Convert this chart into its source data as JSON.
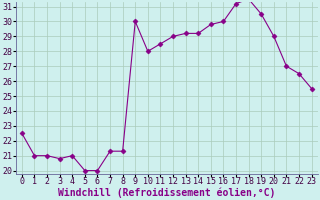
{
  "x": [
    0,
    1,
    2,
    3,
    4,
    5,
    6,
    7,
    8,
    9,
    10,
    11,
    12,
    13,
    14,
    15,
    16,
    17,
    18,
    19,
    20,
    21,
    22,
    23
  ],
  "y": [
    22.5,
    21.0,
    21.0,
    20.8,
    21.0,
    20.0,
    20.0,
    21.3,
    21.3,
    30.0,
    28.0,
    28.5,
    29.0,
    29.2,
    29.2,
    29.8,
    30.0,
    31.2,
    31.5,
    30.5,
    29.0,
    27.0,
    26.5,
    25.5
  ],
  "line_color": "#880088",
  "marker": "D",
  "marker_size": 2.5,
  "bg_color": "#cff0ee",
  "grid_color": "#aaccbb",
  "xlabel": "Windchill (Refroidissement éolien,°C)",
  "ylim": [
    20,
    31
  ],
  "xlim": [
    -0.5,
    23.5
  ],
  "yticks": [
    20,
    21,
    22,
    23,
    24,
    25,
    26,
    27,
    28,
    29,
    30,
    31
  ],
  "xticks": [
    0,
    1,
    2,
    3,
    4,
    5,
    6,
    7,
    8,
    9,
    10,
    11,
    12,
    13,
    14,
    15,
    16,
    17,
    18,
    19,
    20,
    21,
    22,
    23
  ],
  "xlabel_fontsize": 7,
  "tick_fontsize": 6,
  "line_width": 0.8
}
